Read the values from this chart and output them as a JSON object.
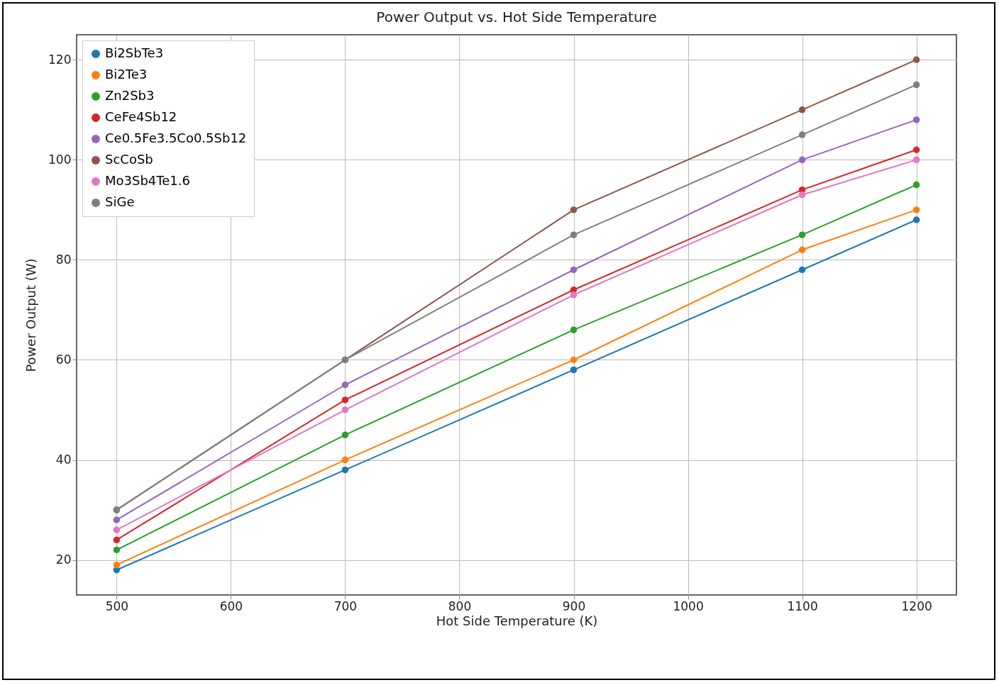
{
  "chart_data": {
    "type": "line",
    "title": "Power Output vs. Hot Side Temperature",
    "xlabel": "Hot Side Temperature (K)",
    "ylabel": "Power Output (W)",
    "x": [
      500,
      700,
      900,
      1100,
      1200
    ],
    "series": [
      {
        "name": "Bi2SbTe3",
        "color": "#1f77b4",
        "values": [
          18,
          38,
          58,
          78,
          88
        ]
      },
      {
        "name": "Bi2Te3",
        "color": "#ff7f0e",
        "values": [
          19,
          40,
          60,
          82,
          90
        ]
      },
      {
        "name": "Zn2Sb3",
        "color": "#2ca02c",
        "values": [
          22,
          45,
          66,
          85,
          95
        ]
      },
      {
        "name": "CeFe4Sb12",
        "color": "#d62728",
        "values": [
          24,
          52,
          74,
          94,
          102
        ]
      },
      {
        "name": "Ce0.5Fe3.5Co0.5Sb12",
        "color": "#9467bd",
        "values": [
          28,
          55,
          78,
          100,
          108
        ]
      },
      {
        "name": "ScCoSb",
        "color": "#8c564b",
        "values": [
          30,
          60,
          90,
          110,
          120
        ]
      },
      {
        "name": "Mo3Sb4Te1.6",
        "color": "#e377c2",
        "values": [
          26,
          50,
          73,
          93,
          100
        ]
      },
      {
        "name": "SiGe",
        "color": "#7f7f7f",
        "values": [
          30,
          60,
          85,
          105,
          115
        ]
      }
    ],
    "xlim": [
      465,
      1235
    ],
    "ylim": [
      13,
      125
    ],
    "xticks": [
      500,
      600,
      700,
      800,
      900,
      1000,
      1100,
      1200
    ],
    "yticks": [
      20,
      40,
      60,
      80,
      100,
      120
    ],
    "grid": true,
    "legend": "top left",
    "marker": "circle",
    "line_style": "solid"
  }
}
